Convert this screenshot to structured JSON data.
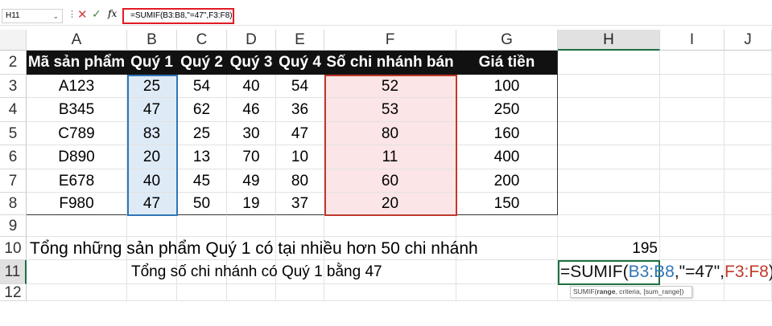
{
  "formula_bar": {
    "name_box": "H11",
    "formula": "=SUMIF(B3:B8,\"=47\",F3:F8)",
    "cancel_icon": "x-icon",
    "enter_icon": "check-icon",
    "fx_label": "fx"
  },
  "columns": [
    "A",
    "B",
    "C",
    "D",
    "E",
    "F",
    "G",
    "H",
    "I",
    "J"
  ],
  "rows": [
    "2",
    "3",
    "4",
    "5",
    "6",
    "7",
    "8",
    "9",
    "10",
    "11",
    "12"
  ],
  "table": {
    "headers": [
      "Mã sản phẩm",
      "Quý 1",
      "Quý 2",
      "Quý 3",
      "Quý 4",
      "Số chi nhánh bán",
      "Giá tiền"
    ],
    "data": [
      [
        "A123",
        "25",
        "54",
        "40",
        "54",
        "52",
        "100"
      ],
      [
        "B345",
        "47",
        "62",
        "46",
        "36",
        "53",
        "250"
      ],
      [
        "C789",
        "83",
        "25",
        "30",
        "47",
        "80",
        "160"
      ],
      [
        "D890",
        "20",
        "13",
        "70",
        "10",
        "11",
        "400"
      ],
      [
        "E678",
        "40",
        "45",
        "49",
        "80",
        "60",
        "200"
      ],
      [
        "F980",
        "47",
        "50",
        "19",
        "37",
        "20",
        "150"
      ]
    ]
  },
  "row10": {
    "label": "Tổng những sản phẩm Quý 1 có tại nhiều hơn 50 chi nhánh",
    "value": "195"
  },
  "row11": {
    "label": "Tổng số chi nhánh có Quý 1 bằng 47",
    "edit": {
      "p1": "=SUMIF(",
      "p2": "B3:B8",
      "p3": ",\"=47\",",
      "p4": "F3:F8",
      "p5": ")"
    },
    "tooltip": {
      "fn": "SUMIF(",
      "bold": "range",
      "rest": ", criteria, [sum_range])"
    }
  },
  "colors": {
    "range1": "#2f75b5",
    "range2": "#c0392b",
    "active": "#1e6e42",
    "header_bg": "#111111"
  }
}
